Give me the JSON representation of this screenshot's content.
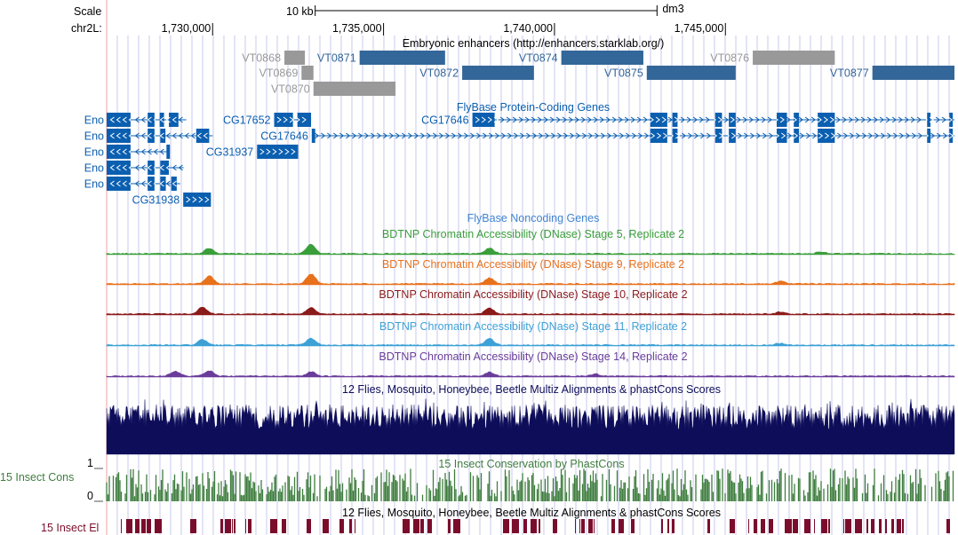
{
  "ruler": {
    "scale_label": "Scale",
    "chrom_label": "chr2L:",
    "scalebar_label": "10 kb",
    "assembly": "dm3",
    "positions": [
      {
        "bp": 1730000,
        "label": "1,730,000"
      },
      {
        "bp": 1735000,
        "label": "1,735,000"
      },
      {
        "bp": 1740000,
        "label": "1,740,000"
      },
      {
        "bp": 1745000,
        "label": "1,745,000"
      }
    ],
    "scalebar_bp": [
      1733000,
      1743000
    ]
  },
  "view": {
    "start_bp": 1726900,
    "end_bp": 1751700
  },
  "colors": {
    "base_line": "#f2a0a0",
    "grid": "#c8c8ee",
    "enhancer_blue": "#336699",
    "enhancer_gray": "#999999",
    "gene_blue": "#0b5fb0",
    "noncoding_title": "#3f84d1",
    "dnase_stage5": "#3a9e3a",
    "dnase_stage9": "#e8711c",
    "dnase_stage10": "#8b1a1a",
    "dnase_stage11": "#3da1d6",
    "dnase_stage14": "#6a3d9a",
    "multiz": "#0d0d5a",
    "phastcons": "#3f7d3f",
    "elements": "#7a0d2c"
  },
  "tracks": {
    "enhancers": {
      "title": "Embryonic enhancers (http://enhancers.starklab.org/)",
      "items": [
        {
          "id": "VT0868",
          "label": "VT0868",
          "start": 1732100,
          "end": 1732700,
          "row": 0,
          "active": false
        },
        {
          "id": "VT0869",
          "label": "VT0869",
          "start": 1732600,
          "end": 1732950,
          "row": 1,
          "active": false
        },
        {
          "id": "VT0870",
          "label": "VT0870",
          "start": 1732950,
          "end": 1735350,
          "row": 2,
          "active": false
        },
        {
          "id": "VT0871",
          "label": "VT0871",
          "start": 1734300,
          "end": 1736800,
          "row": 0,
          "active": true
        },
        {
          "id": "VT0872",
          "label": "VT0872",
          "start": 1737300,
          "end": 1739400,
          "row": 1,
          "active": true
        },
        {
          "id": "VT0874",
          "label": "VT0874",
          "start": 1740200,
          "end": 1742600,
          "row": 0,
          "active": true
        },
        {
          "id": "VT0875",
          "label": "VT0875",
          "start": 1742700,
          "end": 1745300,
          "row": 1,
          "active": true
        },
        {
          "id": "VT0876",
          "label": "VT0876",
          "start": 1745800,
          "end": 1748200,
          "row": 0,
          "active": false
        },
        {
          "id": "VT0877",
          "label": "VT0877",
          "start": 1749300,
          "end": 1751700,
          "row": 1,
          "active": true
        }
      ]
    },
    "genes": {
      "title": "FlyBase Protein-Coding Genes",
      "items": [
        {
          "label": "Eno",
          "row": 0,
          "line_start": 1726900,
          "line_end": 1729230,
          "strand": "-",
          "exons": [
            [
              1726900,
              1727600
            ],
            [
              1728100,
              1728300
            ],
            [
              1728450,
              1728580
            ],
            [
              1728720,
              1729000
            ]
          ]
        },
        {
          "label": "Eno",
          "row": 1,
          "line_start": 1726900,
          "line_end": 1730000,
          "strand": "-",
          "exons": [
            [
              1726900,
              1727600
            ],
            [
              1728100,
              1728300
            ],
            [
              1728470,
              1728620
            ],
            [
              1729520,
              1729900
            ]
          ]
        },
        {
          "label": "Eno",
          "row": 2,
          "line_start": 1726900,
          "line_end": 1728750,
          "strand": "-",
          "exons": [
            [
              1726900,
              1727600
            ],
            [
              1728650,
              1728750
            ]
          ]
        },
        {
          "label": "Eno",
          "row": 3,
          "line_start": 1726900,
          "line_end": 1729150,
          "strand": "-",
          "exons": [
            [
              1726900,
              1727600
            ],
            [
              1728100,
              1728300
            ],
            [
              1728470,
              1728720
            ]
          ]
        },
        {
          "label": "Eno",
          "row": 4,
          "line_start": 1726900,
          "line_end": 1729050,
          "strand": "-",
          "exons": [
            [
              1726900,
              1727600
            ],
            [
              1728100,
              1728300
            ],
            [
              1728470,
              1728630
            ],
            [
              1728790,
              1728950
            ]
          ]
        },
        {
          "label": "CG31938",
          "row": 5,
          "line_start": 1729140,
          "line_end": 1729950,
          "strand": "+",
          "exons": [
            [
              1729140,
              1729950
            ]
          ]
        },
        {
          "label": "CG31937",
          "row": 2,
          "line_start": 1731300,
          "line_end": 1732500,
          "strand": "+",
          "exons": [
            [
              1731300,
              1732500
            ]
          ]
        },
        {
          "label": "CG17652",
          "row": 0,
          "line_start": 1731800,
          "line_end": 1732880,
          "strand": "+",
          "exons": [
            [
              1731800,
              1732350
            ],
            [
              1732480,
              1732880
            ]
          ]
        },
        {
          "label": "CG17646",
          "row": 1,
          "line_start": 1732900,
          "line_end": 1751700,
          "strand": "+",
          "exons": [
            [
              1732900,
              1733000
            ],
            [
              1742800,
              1743300
            ],
            [
              1743450,
              1743600
            ],
            [
              1744700,
              1744900
            ],
            [
              1745100,
              1745300
            ],
            [
              1746500,
              1746800
            ],
            [
              1747000,
              1747150
            ],
            [
              1747700,
              1748200
            ],
            [
              1750900,
              1751000
            ],
            [
              1751550,
              1751650
            ]
          ]
        },
        {
          "label": "CG17646",
          "row": 0,
          "line_start": 1737600,
          "line_end": 1751700,
          "strand": "+",
          "exons": [
            [
              1737600,
              1738250
            ],
            [
              1742800,
              1743300
            ],
            [
              1743450,
              1743600
            ],
            [
              1744700,
              1744900
            ],
            [
              1745100,
              1745300
            ],
            [
              1746500,
              1746800
            ],
            [
              1747000,
              1747150
            ],
            [
              1747700,
              1748200
            ],
            [
              1750900,
              1751000
            ],
            [
              1751550,
              1751650
            ]
          ]
        }
      ]
    },
    "noncoding": {
      "title": "FlyBase Noncoding Genes"
    },
    "dnase": [
      {
        "title": "BDTNP Chromatin Accessibility (DNase) Stage 5, Replicate 2",
        "color_key": "dnase_stage5",
        "peaks": [
          [
            1729900,
            0.55
          ],
          [
            1732880,
            0.95
          ],
          [
            1738100,
            0.55
          ],
          [
            1747800,
            0.2
          ]
        ]
      },
      {
        "title": "BDTNP Chromatin Accessibility (DNase) Stage 9, Replicate 2",
        "color_key": "dnase_stage9",
        "peaks": [
          [
            1729900,
            0.8
          ],
          [
            1732880,
            1.0
          ],
          [
            1738100,
            0.6
          ],
          [
            1746600,
            0.25
          ]
        ]
      },
      {
        "title": "BDTNP Chromatin Accessibility (DNase) Stage 10, Replicate 2",
        "color_key": "dnase_stage10",
        "peaks": [
          [
            1729700,
            0.7
          ],
          [
            1732880,
            0.65
          ],
          [
            1738100,
            0.6
          ],
          [
            1746600,
            0.2
          ]
        ]
      },
      {
        "title": "BDTNP Chromatin Accessibility (DNase) Stage 11, Replicate 2",
        "color_key": "dnase_stage11",
        "peaks": [
          [
            1729700,
            0.55
          ],
          [
            1732880,
            0.7
          ],
          [
            1738100,
            0.65
          ],
          [
            1746600,
            0.2
          ]
        ]
      },
      {
        "title": "BDTNP Chromatin Accessibility (DNase) Stage 14, Replicate 2",
        "color_key": "dnase_stage14",
        "peaks": [
          [
            1728900,
            0.5
          ],
          [
            1729900,
            0.55
          ],
          [
            1732880,
            0.45
          ],
          [
            1738100,
            0.4
          ],
          [
            1741200,
            0.2
          ]
        ]
      }
    ],
    "multiz": {
      "title": "12 Flies, Mosquito, Honeybee, Beetle Multiz Alignments & phastCons Scores"
    },
    "phastcons": {
      "title": "15 Insect Conservation by PhastCons",
      "side_label": "15 Insect Cons",
      "axis_max": "1",
      "axis_min": "0"
    },
    "elements": {
      "title": "12 Flies, Mosquito, Honeybee, Beetle Multiz Alignments & phastCons Scores",
      "side_label": "15 Insect El"
    }
  }
}
